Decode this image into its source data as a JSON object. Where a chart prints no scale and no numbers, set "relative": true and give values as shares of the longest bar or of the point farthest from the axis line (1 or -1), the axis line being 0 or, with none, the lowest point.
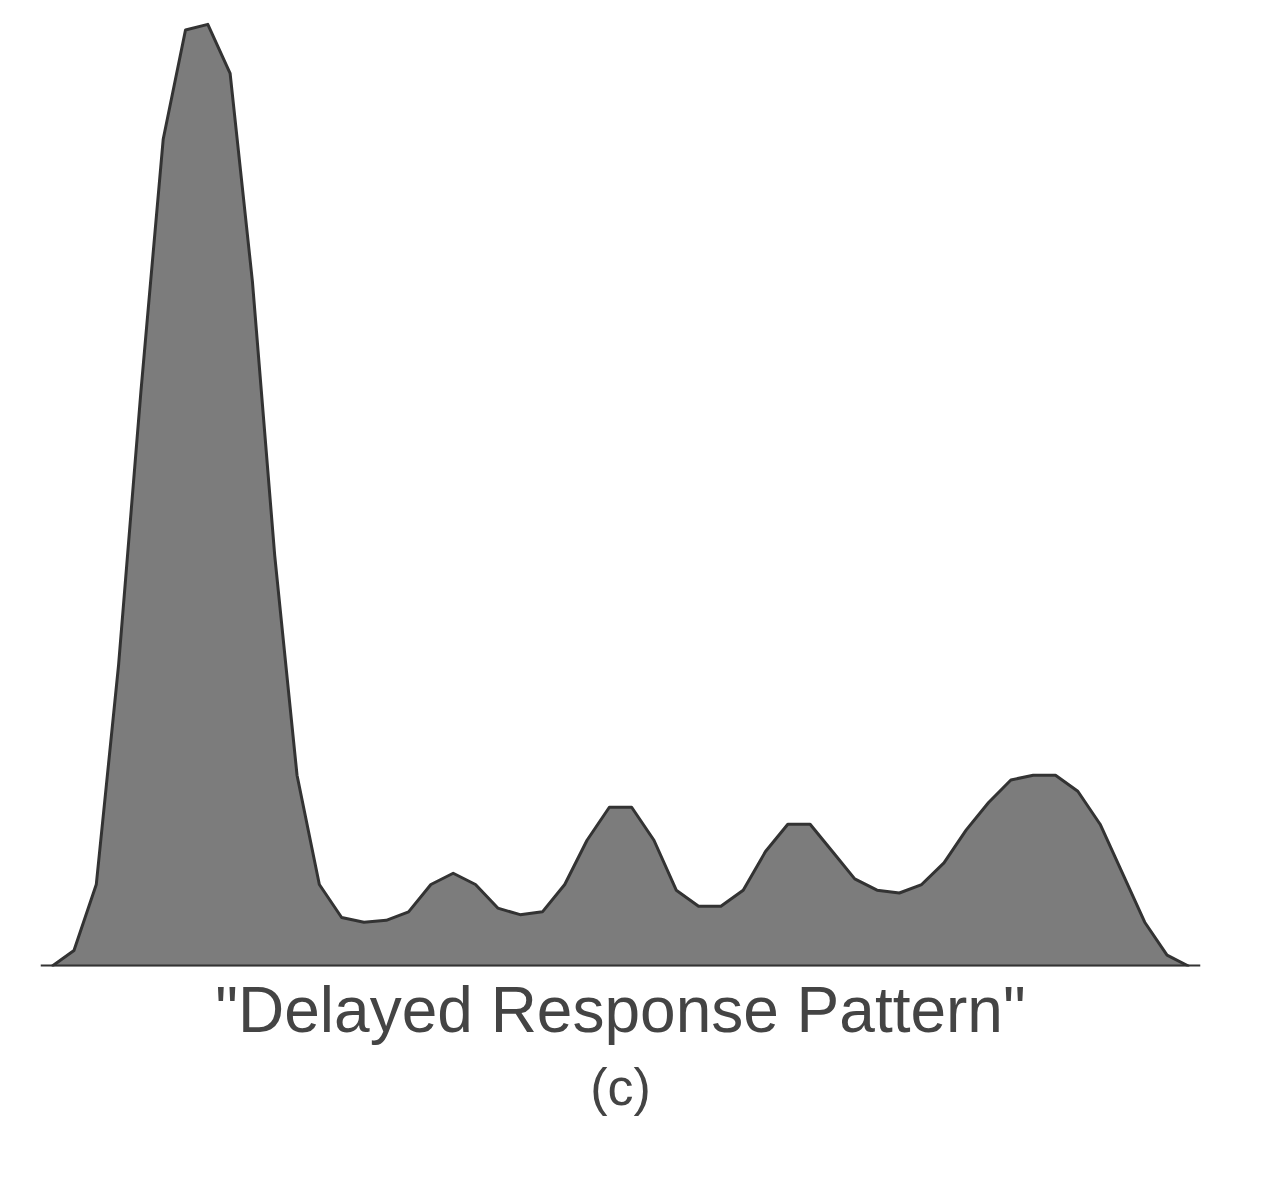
{
  "chart_data": {
    "type": "area",
    "title": "\"Delayed Response Pattern\"",
    "subtitle": "(c)",
    "relative": true,
    "grid": false,
    "color": "#6e6e6e",
    "categories": [
      null,
      null,
      null,
      null,
      null,
      null,
      null,
      null,
      null,
      null,
      null,
      null,
      null,
      null,
      null,
      null,
      null,
      null,
      null,
      null,
      null,
      null,
      null,
      null,
      null,
      null,
      null,
      null,
      null,
      null,
      null,
      null,
      null,
      null,
      null,
      null,
      null,
      null,
      null,
      null,
      null,
      null,
      null,
      null,
      null,
      null,
      null,
      null,
      null,
      null,
      null,
      null
    ],
    "values": [
      0,
      0.017,
      0.087,
      0.32,
      0.61,
      0.878,
      0.994,
      1,
      0.948,
      0.727,
      0.436,
      0.203,
      0.087,
      0.052,
      0.047,
      0.049,
      0.058,
      0.087,
      0.099,
      0.087,
      0.062,
      0.055,
      0.058,
      0.087,
      0.134,
      0.169,
      0.169,
      0.134,
      0.081,
      0.064,
      0.064,
      0.081,
      0.122,
      0.151,
      0.151,
      0.122,
      0.093,
      0.081,
      0.078,
      0.087,
      0.11,
      0.145,
      0.174,
      0.198,
      0.203,
      0.203,
      0.186,
      0.151,
      0.099,
      0.047,
      0.012,
      0
    ]
  }
}
